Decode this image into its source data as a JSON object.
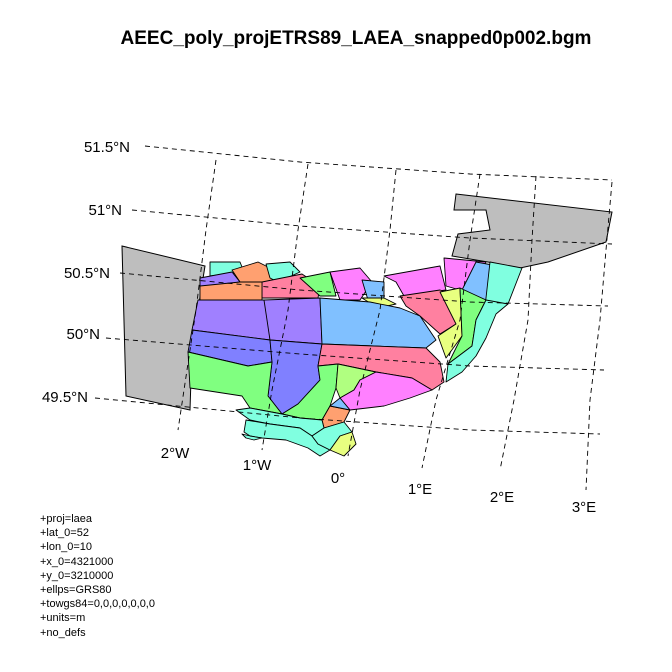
{
  "title": "AEEC_poly_projETRS89_LAEA_snapped0p002.bgm",
  "lat_labels": [
    "51.5°N",
    "51°N",
    "50.5°N",
    "50°N",
    "49.5°N"
  ],
  "lon_labels": [
    "2°W",
    "1°W",
    "0°",
    "1°E",
    "2°E",
    "3°E"
  ],
  "projection": [
    "+proj=laea",
    "+lat_0=52",
    "+lon_0=10",
    "+x_0=4321000",
    "+y_0=3210000",
    "+ellps=GRS80",
    "+towgs84=0,0,0,0,0,0,0",
    "+units=m",
    "+no_defs"
  ],
  "colors": {
    "land": "#bebebe",
    "violet": "#a080ff",
    "blue": "#8080ff",
    "green": "#80ff80",
    "cyan": "#80ffe0",
    "sky": "#80c0ff",
    "pink": "#ff80a0",
    "magenta": "#ff80ff",
    "orange": "#ffa070",
    "yellow": "#e8ff80",
    "lime": "#b0ff80"
  }
}
